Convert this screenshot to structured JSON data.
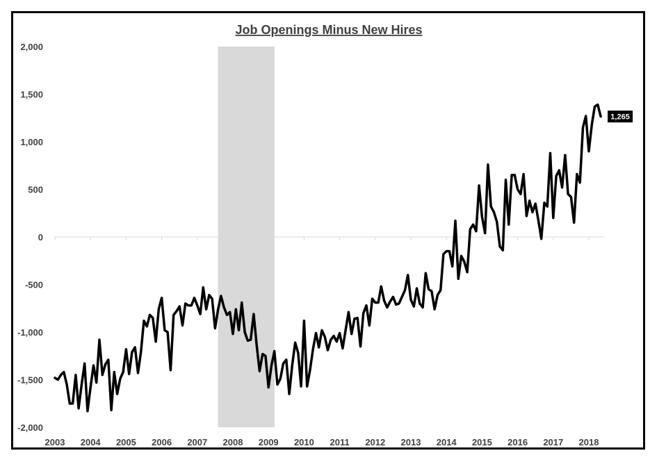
{
  "chart_data": {
    "type": "line",
    "title": "Job Openings Minus New Hires",
    "xlabel": "",
    "ylabel": "",
    "ylim": [
      -2000,
      2000
    ],
    "yticks": [
      2000,
      1500,
      1000,
      500,
      0,
      -500,
      -1000,
      -1500,
      -2000
    ],
    "ytick_labels": [
      "2,000",
      "1,500",
      "1,000",
      "500",
      "0",
      "-500",
      "-1,000",
      "-1,500",
      "-2,000"
    ],
    "xticks": [
      "2003",
      "2004",
      "2005",
      "2006",
      "2007",
      "2008",
      "2009",
      "2010",
      "2011",
      "2012",
      "2013",
      "2014",
      "2015",
      "2016",
      "2017",
      "2018"
    ],
    "x_start_year": 2003,
    "grid": false,
    "legend": "none",
    "recession_shading": [
      {
        "start": 2007.58,
        "end": 2009.17
      }
    ],
    "last_value_label": "1,265",
    "colors": {
      "line": "#000000",
      "shade": "#d9d9d9",
      "axis": "#d9d9d9",
      "text": "#404040",
      "label_bg": "#000000",
      "label_text": "#ffffff"
    },
    "series": [
      {
        "values": [
          -1480,
          -1500,
          -1450,
          -1420,
          -1550,
          -1750,
          -1750,
          -1450,
          -1800,
          -1550,
          -1330,
          -1830,
          -1580,
          -1350,
          -1530,
          -1080,
          -1450,
          -1340,
          -1290,
          -1820,
          -1420,
          -1650,
          -1490,
          -1420,
          -1180,
          -1440,
          -1210,
          -1160,
          -1430,
          -1210,
          -880,
          -940,
          -820,
          -850,
          -1100,
          -760,
          -640,
          -980,
          -1000,
          -1400,
          -820,
          -780,
          -730,
          -930,
          -700,
          -720,
          -720,
          -640,
          -720,
          -810,
          -530,
          -760,
          -610,
          -650,
          -960,
          -760,
          -620,
          -740,
          -820,
          -790,
          -1020,
          -760,
          -980,
          -690,
          -1000,
          -1090,
          -1080,
          -810,
          -1130,
          -1410,
          -1230,
          -1250,
          -1580,
          -1350,
          -1200,
          -1550,
          -1490,
          -1330,
          -1290,
          -1650,
          -1350,
          -1110,
          -1220,
          -1570,
          -880,
          -1570,
          -1400,
          -1180,
          -1010,
          -1160,
          -980,
          -1050,
          -1190,
          -1080,
          -1040,
          -1100,
          -1010,
          -1170,
          -980,
          -790,
          -1020,
          -860,
          -850,
          -1150,
          -800,
          -720,
          -930,
          -650,
          -690,
          -690,
          -520,
          -670,
          -740,
          -680,
          -630,
          -710,
          -700,
          -630,
          -560,
          -400,
          -660,
          -730,
          -540,
          -700,
          -740,
          -380,
          -550,
          -570,
          -760,
          -610,
          -560,
          -180,
          -150,
          -150,
          -310,
          170,
          -440,
          -200,
          -260,
          -370,
          80,
          130,
          60,
          540,
          210,
          40,
          760,
          320,
          260,
          160,
          -100,
          -140,
          600,
          130,
          650,
          650,
          500,
          450,
          660,
          220,
          380,
          260,
          350,
          170,
          -20,
          360,
          320,
          880,
          200,
          640,
          700,
          520,
          860,
          450,
          420,
          150,
          660,
          570,
          1150,
          1270,
          900,
          1180,
          1370,
          1390,
          1265
        ]
      }
    ]
  }
}
